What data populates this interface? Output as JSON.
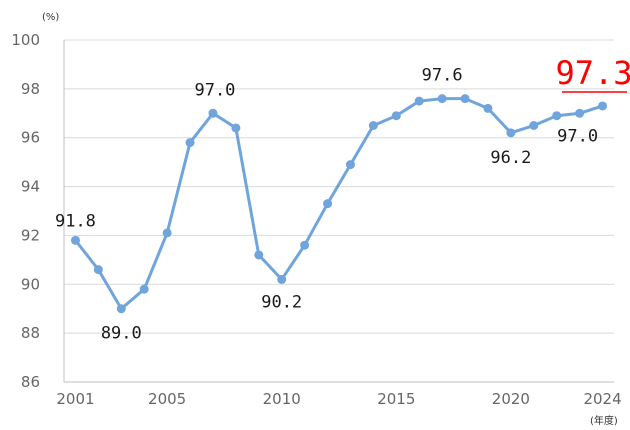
{
  "chart_data": {
    "type": "line",
    "y_unit": "(%)",
    "x_unit": "(年度)",
    "ylim": [
      86,
      100
    ],
    "yticks": [
      "86",
      "88",
      "90",
      "92",
      "94",
      "96",
      "98",
      "100"
    ],
    "xticks": [
      "2001",
      "2005",
      "2010",
      "2015",
      "2020",
      "2024"
    ],
    "grid": true,
    "series": [
      {
        "x": [
          2001,
          2002,
          2003,
          2004,
          2005,
          2006,
          2007,
          2008,
          2009,
          2010,
          2011,
          2012,
          2013,
          2014,
          2015,
          2016,
          2017,
          2018,
          2019,
          2020,
          2021,
          2022,
          2023,
          2024
        ],
        "values": [
          91.8,
          90.6,
          89.0,
          89.8,
          92.1,
          95.8,
          97.0,
          96.4,
          91.2,
          90.2,
          91.6,
          93.3,
          94.9,
          96.5,
          96.9,
          97.5,
          97.6,
          97.6,
          97.2,
          96.2,
          96.5,
          96.9,
          97.0,
          97.3
        ],
        "color": "#6fa4dc"
      }
    ],
    "annotations": [
      {
        "year": 2001,
        "text": "91.8"
      },
      {
        "year": 2003,
        "text": "89.0"
      },
      {
        "year": 2007,
        "text": "97.0"
      },
      {
        "year": 2010,
        "text": "90.2"
      },
      {
        "year": 2017,
        "text": "97.6"
      },
      {
        "year": 2020,
        "text": "96.2"
      },
      {
        "year": 2023,
        "text": "97.0"
      }
    ],
    "highlight": {
      "year": 2024,
      "text": "97.3",
      "color": "#ff0000"
    }
  }
}
